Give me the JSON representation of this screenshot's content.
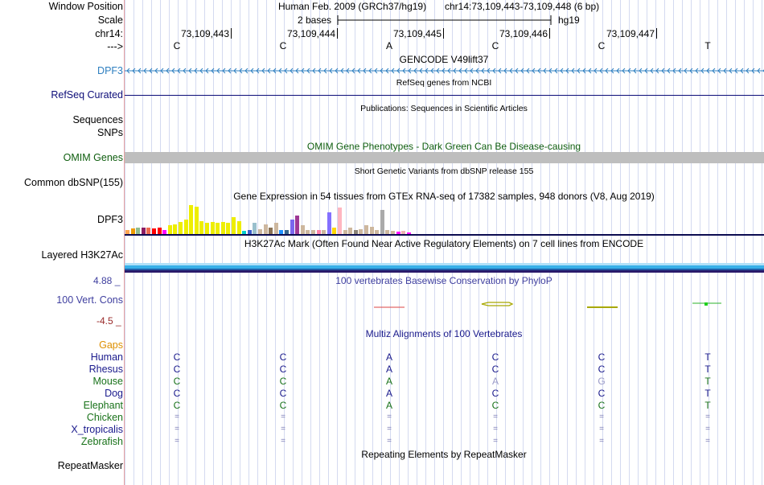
{
  "header": {
    "window_position_label": "Window Position",
    "scale_label": "Scale",
    "chrom_label": "chr14:",
    "strand_label": "--->",
    "assembly": "Human Feb. 2009 (GRCh37/hg19)",
    "position": "chr14:73,109,443-73,109,448 (6 bp)",
    "scale_text": "2 bases",
    "db": "hg19",
    "coordinates": [
      "73,109,443",
      "73,109,444",
      "73,109,445",
      "73,109,446",
      "73,109,447"
    ],
    "sequence": [
      "C",
      "C",
      "A",
      "C",
      "C",
      "T"
    ]
  },
  "tracks": {
    "gencode": {
      "title": "GENCODE V49lift37",
      "label": "DPF3",
      "color": "#2e7fc0"
    },
    "refseq": {
      "title": "RefSeq genes from NCBI",
      "label": "RefSeq Curated",
      "color": "#0c0c78"
    },
    "publications": {
      "title": "Publications: Sequences in Scientific Articles",
      "label1": "Sequences",
      "label2": "SNPs"
    },
    "omim": {
      "title": "OMIM Gene Phenotypes - Dark Green Can Be Disease-causing",
      "label": "OMIM Genes",
      "color": "#0f5e0f"
    },
    "dbsnp": {
      "title": "Short Genetic Variants from dbSNP release 155",
      "label": "Common dbSNP(155)"
    },
    "gtex": {
      "title": "Gene Expression in 54 tissues from GTEx RNA-seq of 17382 samples, 948 donors (V8, Aug 2019)",
      "label": "DPF3",
      "bars": [
        {
          "v": 0.12,
          "c": "#ffa54f"
        },
        {
          "v": 0.18,
          "c": "#ee9a00"
        },
        {
          "v": 0.22,
          "c": "#8fbc8f"
        },
        {
          "v": 0.2,
          "c": "#8b1c62"
        },
        {
          "v": 0.22,
          "c": "#ee6a50"
        },
        {
          "v": 0.18,
          "c": "#ff0000"
        },
        {
          "v": 0.2,
          "c": "#ff0000"
        },
        {
          "v": 0.12,
          "c": "#ff00ff"
        },
        {
          "v": 0.3,
          "c": "#eeee00"
        },
        {
          "v": 0.32,
          "c": "#eeee00"
        },
        {
          "v": 0.4,
          "c": "#eeee00"
        },
        {
          "v": 0.48,
          "c": "#eeee00"
        },
        {
          "v": 0.95,
          "c": "#eeee00"
        },
        {
          "v": 0.9,
          "c": "#eeee00"
        },
        {
          "v": 0.42,
          "c": "#eeee00"
        },
        {
          "v": 0.36,
          "c": "#eeee00"
        },
        {
          "v": 0.4,
          "c": "#eeee00"
        },
        {
          "v": 0.36,
          "c": "#eeee00"
        },
        {
          "v": 0.4,
          "c": "#eeee00"
        },
        {
          "v": 0.36,
          "c": "#eeee00"
        },
        {
          "v": 0.56,
          "c": "#eeee00"
        },
        {
          "v": 0.42,
          "c": "#eeee00"
        },
        {
          "v": 0.1,
          "c": "#00cdcd"
        },
        {
          "v": 0.12,
          "c": "#3a5fcd"
        },
        {
          "v": 0.38,
          "c": "#9ac0cd"
        },
        {
          "v": 0.16,
          "c": "#cdb79e"
        },
        {
          "v": 0.32,
          "c": "#cdb79e"
        },
        {
          "v": 0.2,
          "c": "#8b7355"
        },
        {
          "v": 0.36,
          "c": "#cdb79e"
        },
        {
          "v": 0.12,
          "c": "#1e90ff"
        },
        {
          "v": 0.14,
          "c": "#36648b"
        },
        {
          "v": 0.48,
          "c": "#7a67ee"
        },
        {
          "v": 0.6,
          "c": "#9f3995"
        },
        {
          "v": 0.28,
          "c": "#cdb79e"
        },
        {
          "v": 0.12,
          "c": "#cdb79e"
        },
        {
          "v": 0.12,
          "c": "#cdb79e"
        },
        {
          "v": 0.14,
          "c": "#ff82ab"
        },
        {
          "v": 0.14,
          "c": "#cdb79e"
        },
        {
          "v": 0.72,
          "c": "#8470ff"
        },
        {
          "v": 0.2,
          "c": "#ffd700"
        },
        {
          "v": 0.86,
          "c": "#ffb6c1"
        },
        {
          "v": 0.12,
          "c": "#cdb79e"
        },
        {
          "v": 0.2,
          "c": "#cdb79e"
        },
        {
          "v": 0.12,
          "c": "#8b8378"
        },
        {
          "v": 0.16,
          "c": "#cdb79e"
        },
        {
          "v": 0.28,
          "c": "#cdb79e"
        },
        {
          "v": 0.24,
          "c": "#cdb79e"
        },
        {
          "v": 0.12,
          "c": "#cdb79e"
        },
        {
          "v": 0.78,
          "c": "#aaaaaa"
        },
        {
          "v": 0.12,
          "c": "#cdb79e"
        },
        {
          "v": 0.1,
          "c": "#cdb79e"
        },
        {
          "v": 0.08,
          "c": "#ff00ff"
        },
        {
          "v": 0.1,
          "c": "#eeb4b4"
        },
        {
          "v": 0.06,
          "c": "#ff00ff"
        }
      ]
    },
    "h3k27ac": {
      "title": "H3K27Ac Mark (Often Found Near Active Regulatory Elements) on 7 cell lines from ENCODE",
      "label": "Layered H3K27Ac"
    },
    "phylop": {
      "title": "100 vertebrates Basewise Conservation by PhyloP",
      "label": "100 Vert. Cons",
      "max": "4.88 _",
      "min": "-4.5 _",
      "color": "#3f3f9f"
    },
    "multiz": {
      "title": "Multiz Alignments of 100 Vertebrates",
      "gaps_label": "Gaps",
      "species": [
        {
          "name": "Human",
          "color": "#1a1a8c",
          "seq": [
            "C",
            "C",
            "A",
            "C",
            "C",
            "T"
          ],
          "cols": [
            "#1a1a8c",
            "#1a1a8c",
            "#1a1a8c",
            "#1a1a8c",
            "#1a1a8c",
            "#1a1a8c"
          ]
        },
        {
          "name": "Rhesus",
          "color": "#1a1a8c",
          "seq": [
            "C",
            "C",
            "A",
            "C",
            "C",
            "T"
          ],
          "cols": [
            "#1a1a8c",
            "#1a1a8c",
            "#1a1a8c",
            "#1a1a8c",
            "#1a1a8c",
            "#1a1a8c"
          ]
        },
        {
          "name": "Mouse",
          "color": "#19721a",
          "seq": [
            "C",
            "C",
            "A",
            "A",
            "G",
            "T"
          ],
          "cols": [
            "#19721a",
            "#19721a",
            "#19721a",
            "#9a9ac8",
            "#9a9ac8",
            "#19721a"
          ]
        },
        {
          "name": "Dog",
          "color": "#1a1a8c",
          "seq": [
            "C",
            "C",
            "A",
            "C",
            "C",
            "T"
          ],
          "cols": [
            "#1a1a8c",
            "#1a1a8c",
            "#1a1a8c",
            "#1a1a8c",
            "#1a1a8c",
            "#1a1a8c"
          ]
        },
        {
          "name": "Elephant",
          "color": "#19721a",
          "seq": [
            "C",
            "C",
            "A",
            "C",
            "C",
            "T"
          ],
          "cols": [
            "#19721a",
            "#19721a",
            "#19721a",
            "#19721a",
            "#19721a",
            "#19721a"
          ]
        },
        {
          "name": "Chicken",
          "color": "#19721a",
          "seq": [
            "=",
            "=",
            "=",
            "=",
            "=",
            "="
          ],
          "cols": [
            "#7878b4",
            "#7878b4",
            "#7878b4",
            "#7878b4",
            "#7878b4",
            "#7878b4"
          ]
        },
        {
          "name": "X_tropicalis",
          "color": "#1a1a8c",
          "seq": [
            "=",
            "=",
            "=",
            "=",
            "=",
            "="
          ],
          "cols": [
            "#7878b4",
            "#7878b4",
            "#7878b4",
            "#7878b4",
            "#7878b4",
            "#7878b4"
          ]
        },
        {
          "name": "Zebrafish",
          "color": "#19721a",
          "seq": [
            "=",
            "=",
            "=",
            "=",
            "=",
            "="
          ],
          "cols": [
            "#7878b4",
            "#7878b4",
            "#7878b4",
            "#7878b4",
            "#7878b4",
            "#7878b4"
          ]
        }
      ]
    },
    "repeatmasker": {
      "title": "Repeating Elements by RepeatMasker",
      "label": "RepeatMasker"
    }
  },
  "colors": {
    "gaps": "#dd8f00",
    "grid": "#d4daf0"
  }
}
